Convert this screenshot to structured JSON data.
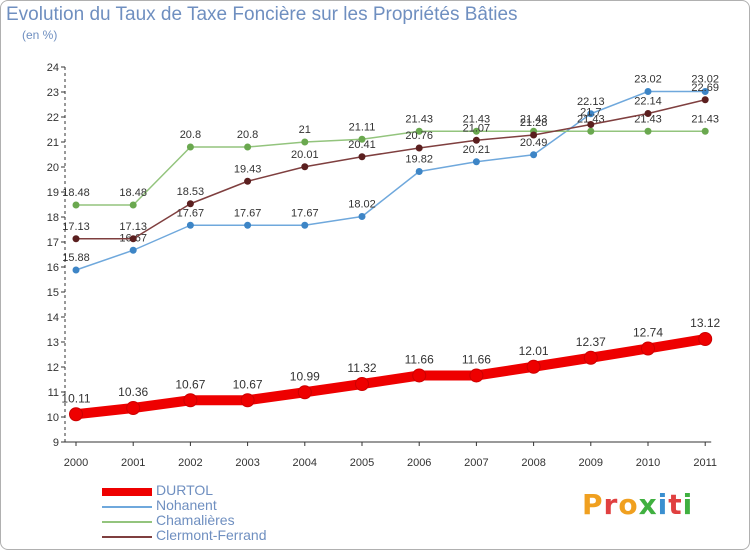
{
  "header": {
    "title": "Evolution du Taux de Taxe Foncière sur les Propriétés Bâties",
    "subtitle": "(en %)"
  },
  "logo": {
    "text": "Proxiti"
  },
  "chart_data": {
    "type": "line",
    "title": "Evolution du Taux de Taxe Foncière sur les Propriétés Bâties",
    "ylabel": "(en %)",
    "xlabel": "",
    "x": [
      "2000",
      "2001",
      "2002",
      "2003",
      "2004",
      "2005",
      "2006",
      "2007",
      "2008",
      "2009",
      "2010",
      "2011"
    ],
    "ylim": [
      9,
      24
    ],
    "yticks": [
      9,
      10,
      11,
      12,
      13,
      14,
      15,
      16,
      17,
      18,
      19,
      20,
      21,
      22,
      23,
      24
    ],
    "grid": false,
    "legend": "bottom-left",
    "series": [
      {
        "name": "DURTOL",
        "color": "#ee0000",
        "emphasis": true,
        "values": [
          10.11,
          10.36,
          10.67,
          10.67,
          10.99,
          11.32,
          11.66,
          11.66,
          12.01,
          12.37,
          12.74,
          13.12
        ],
        "labels": [
          "10.11",
          "10.36",
          "10.67",
          "10.67",
          "10.99",
          "11.32",
          "11.66",
          "11.66",
          "12.01",
          "12.37",
          "12.74",
          "13.12"
        ]
      },
      {
        "name": "Nohanent",
        "color": "#6fa8dc",
        "point_color": "#3d85c6",
        "values": [
          15.88,
          16.67,
          17.67,
          17.67,
          17.67,
          18.02,
          19.82,
          20.21,
          20.49,
          22.13,
          23.02,
          23.02
        ],
        "labels": [
          "15.88",
          "16.67",
          "17.67",
          "17.67",
          "17.67",
          "18.02",
          "19.82",
          "20.21",
          "20.49",
          "22.13",
          "23.02",
          "23.02"
        ]
      },
      {
        "name": "Chamalières",
        "color": "#93c47d",
        "point_color": "#6aa84f",
        "values": [
          18.48,
          18.48,
          20.8,
          20.8,
          21,
          21.11,
          21.43,
          21.43,
          21.43,
          21.43,
          21.43,
          21.43
        ],
        "labels": [
          "18.48",
          "18.48",
          "20.8",
          "20.8",
          "21",
          "21.11",
          "21.43",
          "21.43",
          "21.43",
          "21.43",
          "21.43",
          "21.43"
        ]
      },
      {
        "name": "Clermont-Ferrand",
        "color": "#7f3f3f",
        "point_color": "#5b1f1f",
        "values": [
          17.13,
          17.13,
          18.53,
          19.43,
          20.01,
          20.41,
          20.76,
          21.07,
          21.28,
          21.7,
          22.14,
          22.69
        ],
        "labels": [
          "17.13",
          "17.13",
          "18.53",
          "19.43",
          "20.01",
          "20.41",
          "20.76",
          "21.07",
          "21.28",
          "21.7",
          "22.14",
          "22.69"
        ]
      }
    ]
  }
}
